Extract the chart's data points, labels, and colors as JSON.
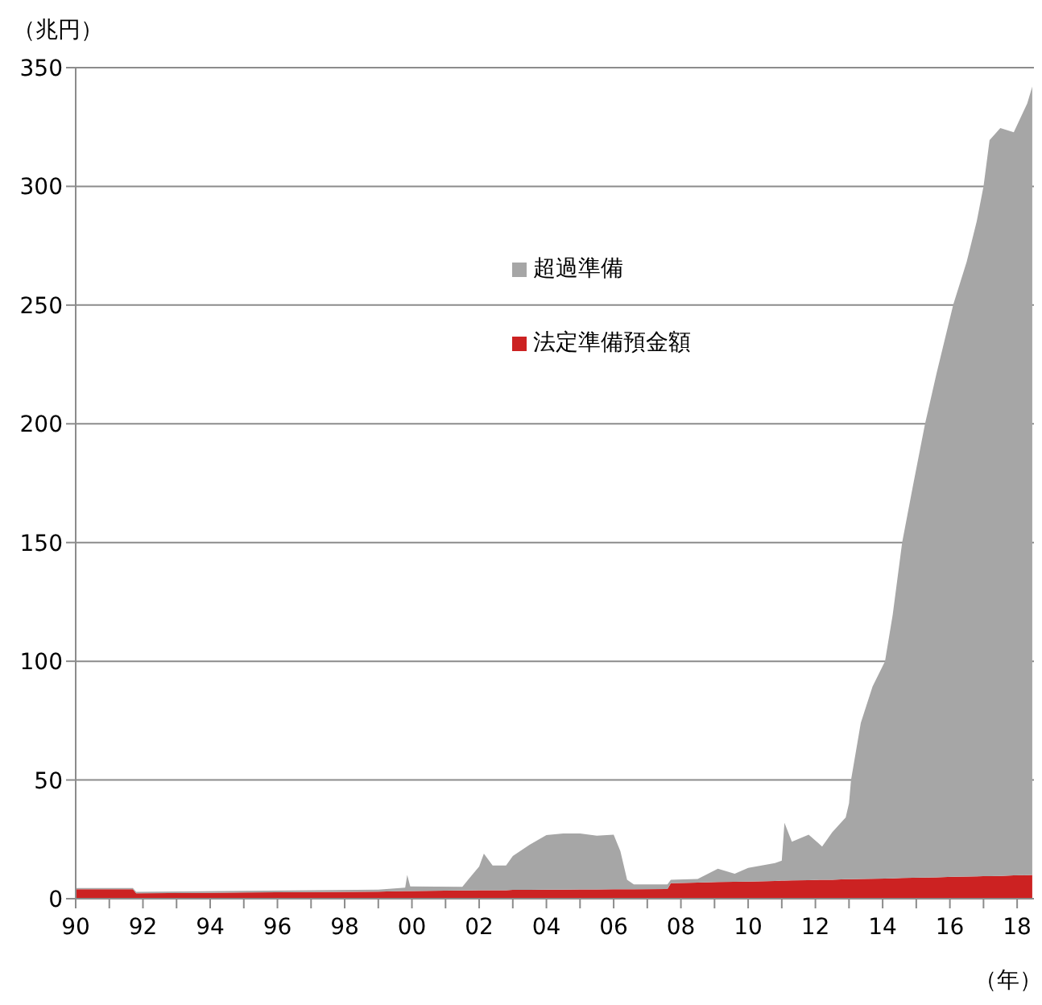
{
  "chart_data": {
    "type": "area",
    "stacked": true,
    "ylabel": "（兆円）",
    "xlabel": "（年）",
    "x": [
      1990,
      1991.7,
      1991.8,
      1995,
      1999,
      1999.8,
      1999.86,
      1999.95,
      2001.5,
      2001.7,
      2002,
      2002.14,
      2002.4,
      2002.8,
      2003,
      2003.5,
      2004,
      2004.5,
      2005,
      2005.5,
      2006,
      2006.2,
      2006.4,
      2006.6,
      2007.6,
      2007.7,
      2008.5,
      2009.1,
      2009.6,
      2010,
      2010.8,
      2011,
      2011.08,
      2011.3,
      2011.8,
      2012.2,
      2012.5,
      2012.9,
      2013,
      2013.06,
      2013.35,
      2013.7,
      2014.07,
      2014.3,
      2014.58,
      2014.9,
      2015.26,
      2015.6,
      2016.1,
      2016.5,
      2016.8,
      2017,
      2017.18,
      2017.5,
      2017.9,
      2018.3,
      2018.45
    ],
    "series": [
      {
        "name": "法定準備預金額",
        "color": "#cc2222",
        "values": [
          4,
          4,
          2.3,
          2.6,
          3,
          3.2,
          3.2,
          3.2,
          3.5,
          3.5,
          3.6,
          3.6,
          3.6,
          3.6,
          3.7,
          3.7,
          3.8,
          3.8,
          3.9,
          3.9,
          4,
          4,
          4,
          4,
          4.1,
          6.5,
          6.8,
          7,
          7.1,
          7.2,
          7.5,
          7.6,
          7.6,
          7.7,
          7.8,
          8,
          8,
          8.2,
          8.2,
          8.2,
          8.3,
          8.4,
          8.5,
          8.6,
          8.7,
          8.8,
          8.9,
          9,
          9.2,
          9.3,
          9.4,
          9.5,
          9.5,
          9.6,
          9.8,
          9.9,
          10
        ]
      },
      {
        "name": "超過準備",
        "color": "#a6a6a6",
        "values": [
          0.5,
          0.5,
          0.6,
          0.7,
          0.8,
          1.5,
          6.8,
          2,
          1.5,
          5,
          10,
          15.4,
          10.4,
          10.4,
          14.3,
          19,
          23,
          23.7,
          23.6,
          22.6,
          23,
          16,
          4,
          2,
          1.9,
          1.5,
          1.5,
          5.6,
          3.4,
          5.8,
          7.5,
          8.4,
          24.4,
          16.3,
          19.2,
          14,
          20,
          26,
          32,
          41.8,
          65.7,
          81,
          91.5,
          111,
          141.3,
          165,
          191,
          212,
          241,
          259,
          276,
          290.5,
          310,
          315,
          313,
          325,
          332
        ]
      }
    ],
    "xlim": [
      1990,
      2018.5
    ],
    "xticks": [
      {
        "value": 1990,
        "label": "90"
      },
      {
        "value": 1991,
        "label": null
      },
      {
        "value": 1992,
        "label": "92"
      },
      {
        "value": 1993,
        "label": null
      },
      {
        "value": 1994,
        "label": "94"
      },
      {
        "value": 1995,
        "label": null
      },
      {
        "value": 1996,
        "label": "96"
      },
      {
        "value": 1997,
        "label": null
      },
      {
        "value": 1998,
        "label": "98"
      },
      {
        "value": 1999,
        "label": null
      },
      {
        "value": 2000,
        "label": "00"
      },
      {
        "value": 2001,
        "label": null
      },
      {
        "value": 2002,
        "label": "02"
      },
      {
        "value": 2003,
        "label": null
      },
      {
        "value": 2004,
        "label": "04"
      },
      {
        "value": 2005,
        "label": null
      },
      {
        "value": 2006,
        "label": "06"
      },
      {
        "value": 2007,
        "label": null
      },
      {
        "value": 2008,
        "label": "08"
      },
      {
        "value": 2009,
        "label": null
      },
      {
        "value": 2010,
        "label": "10"
      },
      {
        "value": 2011,
        "label": null
      },
      {
        "value": 2012,
        "label": "12"
      },
      {
        "value": 2013,
        "label": null
      },
      {
        "value": 2014,
        "label": "14"
      },
      {
        "value": 2015,
        "label": null
      },
      {
        "value": 2016,
        "label": "16"
      },
      {
        "value": 2017,
        "label": null
      },
      {
        "value": 2018,
        "label": "18"
      }
    ],
    "ylim": [
      0,
      350
    ],
    "yticks": [
      0,
      50,
      100,
      150,
      200,
      250,
      300,
      350
    ],
    "grid": "y",
    "legend": "top"
  }
}
